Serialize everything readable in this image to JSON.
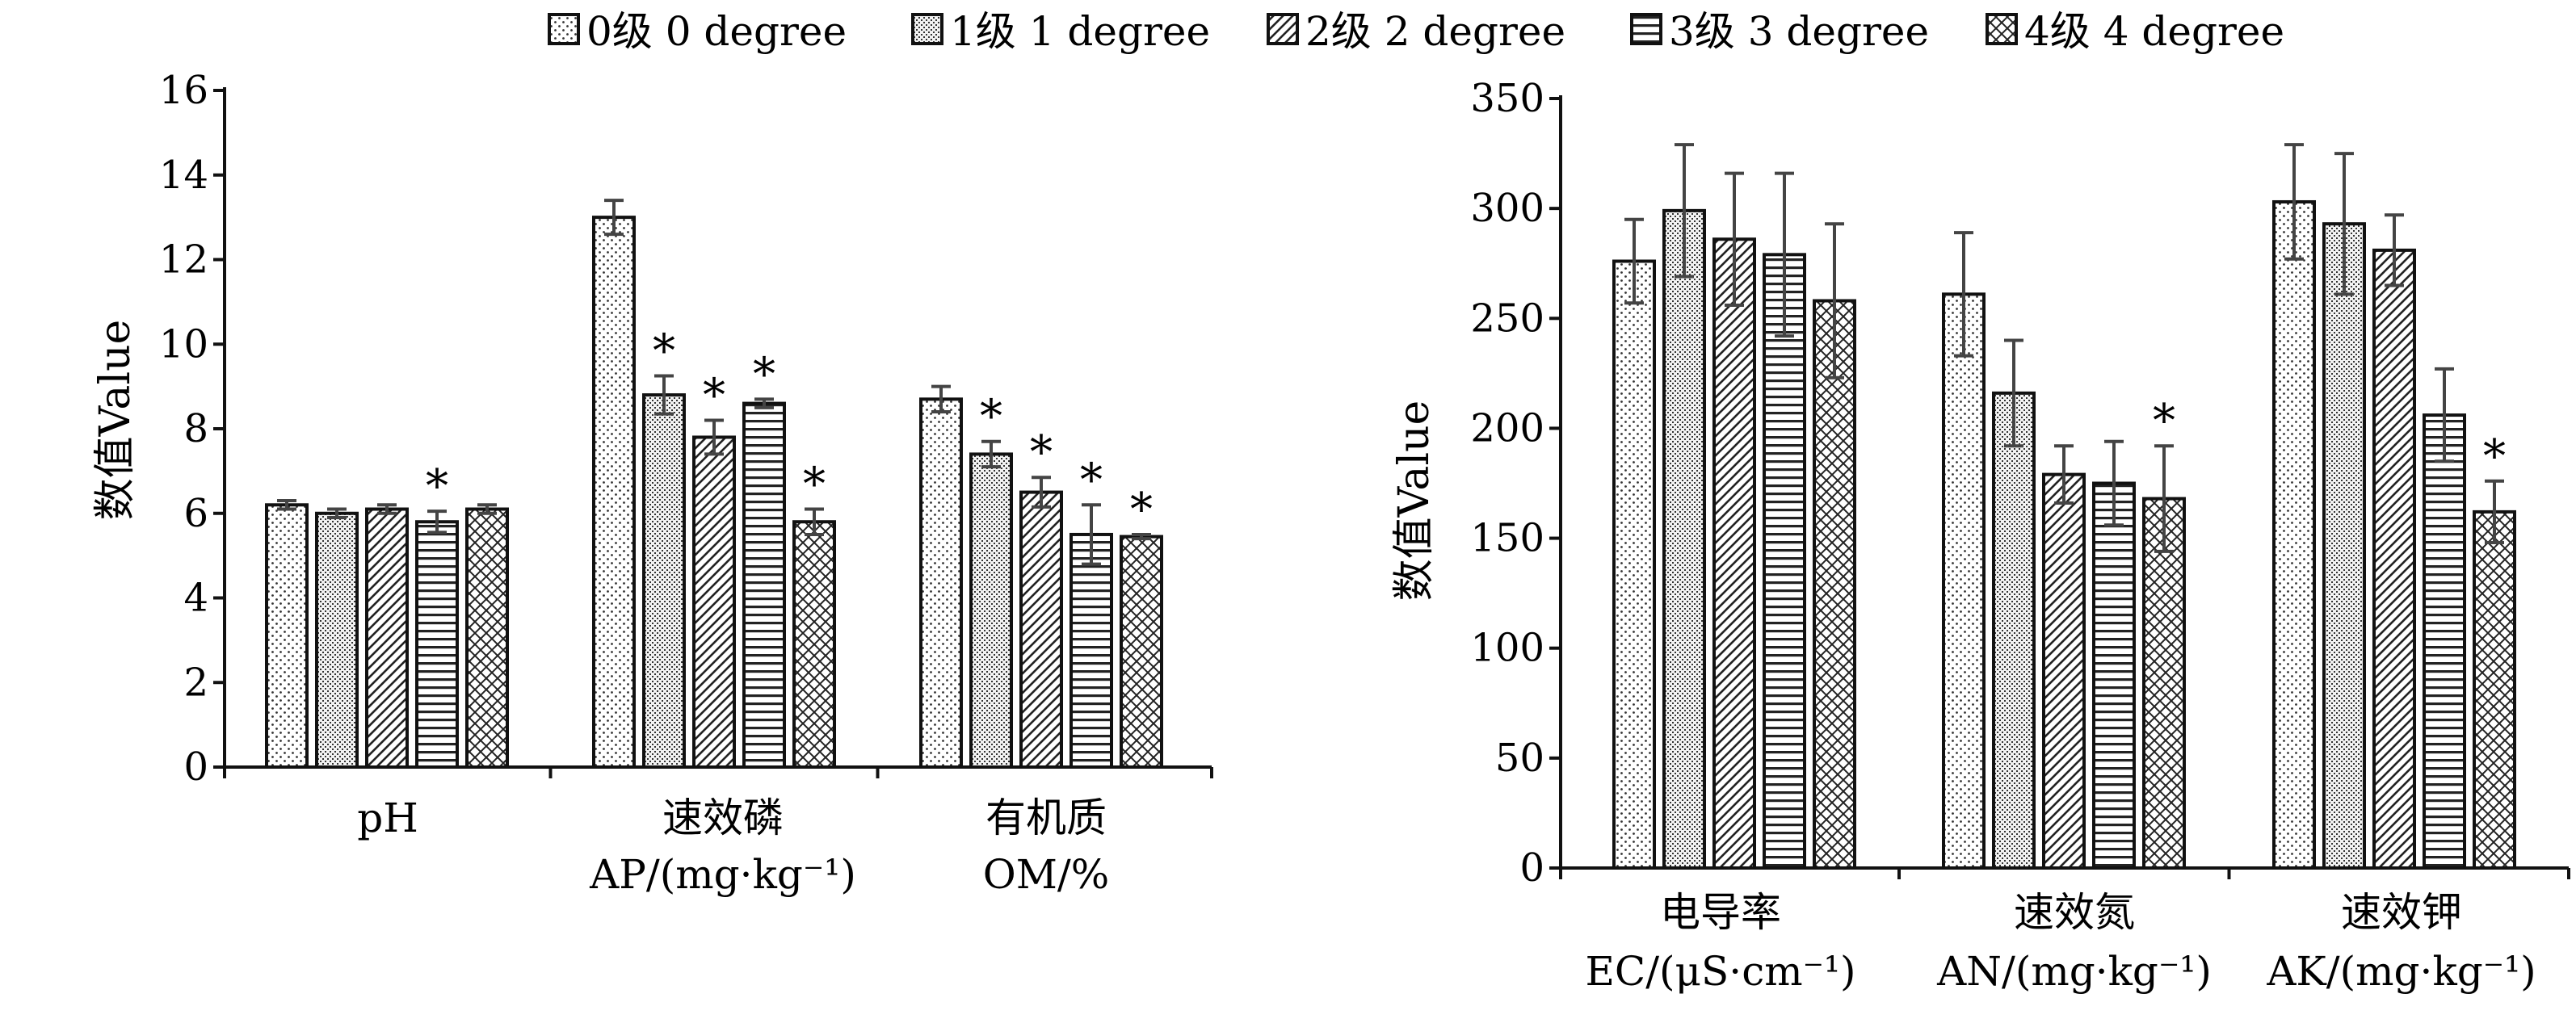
{
  "legend": [
    {
      "label": "0级  0 degree",
      "pattern": "dots"
    },
    {
      "label": "1级  1 degree",
      "pattern": "fine"
    },
    {
      "label": "2级  2 degree",
      "pattern": "diag"
    },
    {
      "label": "3级  3 degree",
      "pattern": "horiz"
    },
    {
      "label": "4级  4 degree",
      "pattern": "cross"
    }
  ],
  "chart_data": [
    {
      "type": "bar",
      "ylabel": "数值Value",
      "ylim": [
        0,
        16
      ],
      "yticks": [
        "0",
        "2",
        "4",
        "6",
        "8",
        "10",
        "12",
        "14",
        "16"
      ],
      "categories": [
        {
          "line1": "pH",
          "line2": ""
        },
        {
          "line1": "速效磷",
          "line2": "AP/(mg·kg⁻¹)"
        },
        {
          "line1": "有机质",
          "line2": "OM/%"
        }
      ],
      "series": [
        {
          "name": "0级  0 degree",
          "values": [
            6.2,
            13.0,
            8.7
          ],
          "errors": [
            0.1,
            0.4,
            0.3
          ],
          "sig": [
            false,
            false,
            false
          ]
        },
        {
          "name": "1级  1 degree",
          "values": [
            6.0,
            8.8,
            7.4
          ],
          "errors": [
            0.1,
            0.45,
            0.3
          ],
          "sig": [
            false,
            true,
            true
          ]
        },
        {
          "name": "2级  2 degree",
          "values": [
            6.1,
            7.8,
            6.5
          ],
          "errors": [
            0.1,
            0.4,
            0.35
          ],
          "sig": [
            false,
            true,
            true
          ]
        },
        {
          "name": "3级  3 degree",
          "values": [
            5.8,
            8.6,
            5.5
          ],
          "errors": [
            0.25,
            0.1,
            0.7
          ],
          "sig": [
            true,
            true,
            true
          ]
        },
        {
          "name": "4级  4 degree",
          "values": [
            6.1,
            5.8,
            5.45
          ],
          "errors": [
            0.1,
            0.3,
            0.05
          ],
          "sig": [
            false,
            true,
            true
          ]
        }
      ]
    },
    {
      "type": "bar",
      "ylabel": "数值Value",
      "ylim": [
        0,
        350
      ],
      "yticks": [
        "0",
        "50",
        "100",
        "150",
        "200",
        "250",
        "300",
        "350"
      ],
      "categories": [
        {
          "line1": "电导率",
          "line2": "EC/(μS·cm⁻¹)"
        },
        {
          "line1": "速效氮",
          "line2": "AN/(mg·kg⁻¹)"
        },
        {
          "line1": "速效钾",
          "line2": "AK/(mg·kg⁻¹)"
        }
      ],
      "series": [
        {
          "name": "0级  0 degree",
          "values": [
            276,
            261,
            303
          ],
          "errors": [
            19,
            28,
            26
          ],
          "sig": [
            false,
            false,
            false
          ]
        },
        {
          "name": "1级  1 degree",
          "values": [
            299,
            216,
            293
          ],
          "errors": [
            30,
            24,
            32
          ],
          "sig": [
            false,
            false,
            false
          ]
        },
        {
          "name": "2级  2 degree",
          "values": [
            286,
            179,
            281
          ],
          "errors": [
            30,
            13,
            16
          ],
          "sig": [
            false,
            false,
            false
          ]
        },
        {
          "name": "3级  3 degree",
          "values": [
            279,
            175,
            206
          ],
          "errors": [
            37,
            19,
            21
          ],
          "sig": [
            false,
            false,
            false
          ]
        },
        {
          "name": "4级  4 degree",
          "values": [
            258,
            168,
            162
          ],
          "errors": [
            35,
            24,
            14
          ],
          "sig": [
            false,
            true,
            true
          ]
        }
      ]
    }
  ],
  "significance_marker": "*"
}
